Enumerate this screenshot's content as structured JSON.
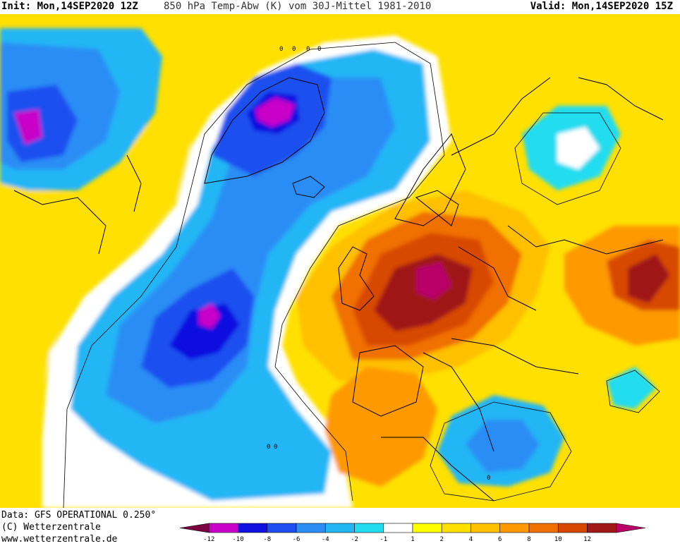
{
  "header": {
    "init": "Init: Mon,14SEP2020 12Z",
    "title": "850 hPa Temp-Abw (K) vom 30J-Mittel 1981-2010",
    "valid": "Valid: Mon,14SEP2020 15Z"
  },
  "credits": {
    "data_line": "Data: GFS OPERATIONAL 0.250°",
    "copyright": "(C) Wetterzentrale",
    "website": "www.wetterzentrale.de"
  },
  "legend": {
    "colors": [
      "#7a0040",
      "#c800c8",
      "#1010e0",
      "#1f4ff0",
      "#2c8df5",
      "#22b6f5",
      "#22dcf0",
      "#ffffff",
      "#ffff00",
      "#ffe000",
      "#ffc000",
      "#ff9900",
      "#f07000",
      "#d84800",
      "#a01818",
      "#b80068"
    ],
    "labels": [
      "-12",
      "-10",
      "-8",
      "-6",
      "-4",
      "-2",
      "-1",
      "1",
      "2",
      "4",
      "6",
      "8",
      "10",
      "12"
    ]
  },
  "map": {
    "contour_labels": [
      "0",
      "0",
      "0",
      "0",
      "0",
      "0",
      "0"
    ]
  }
}
